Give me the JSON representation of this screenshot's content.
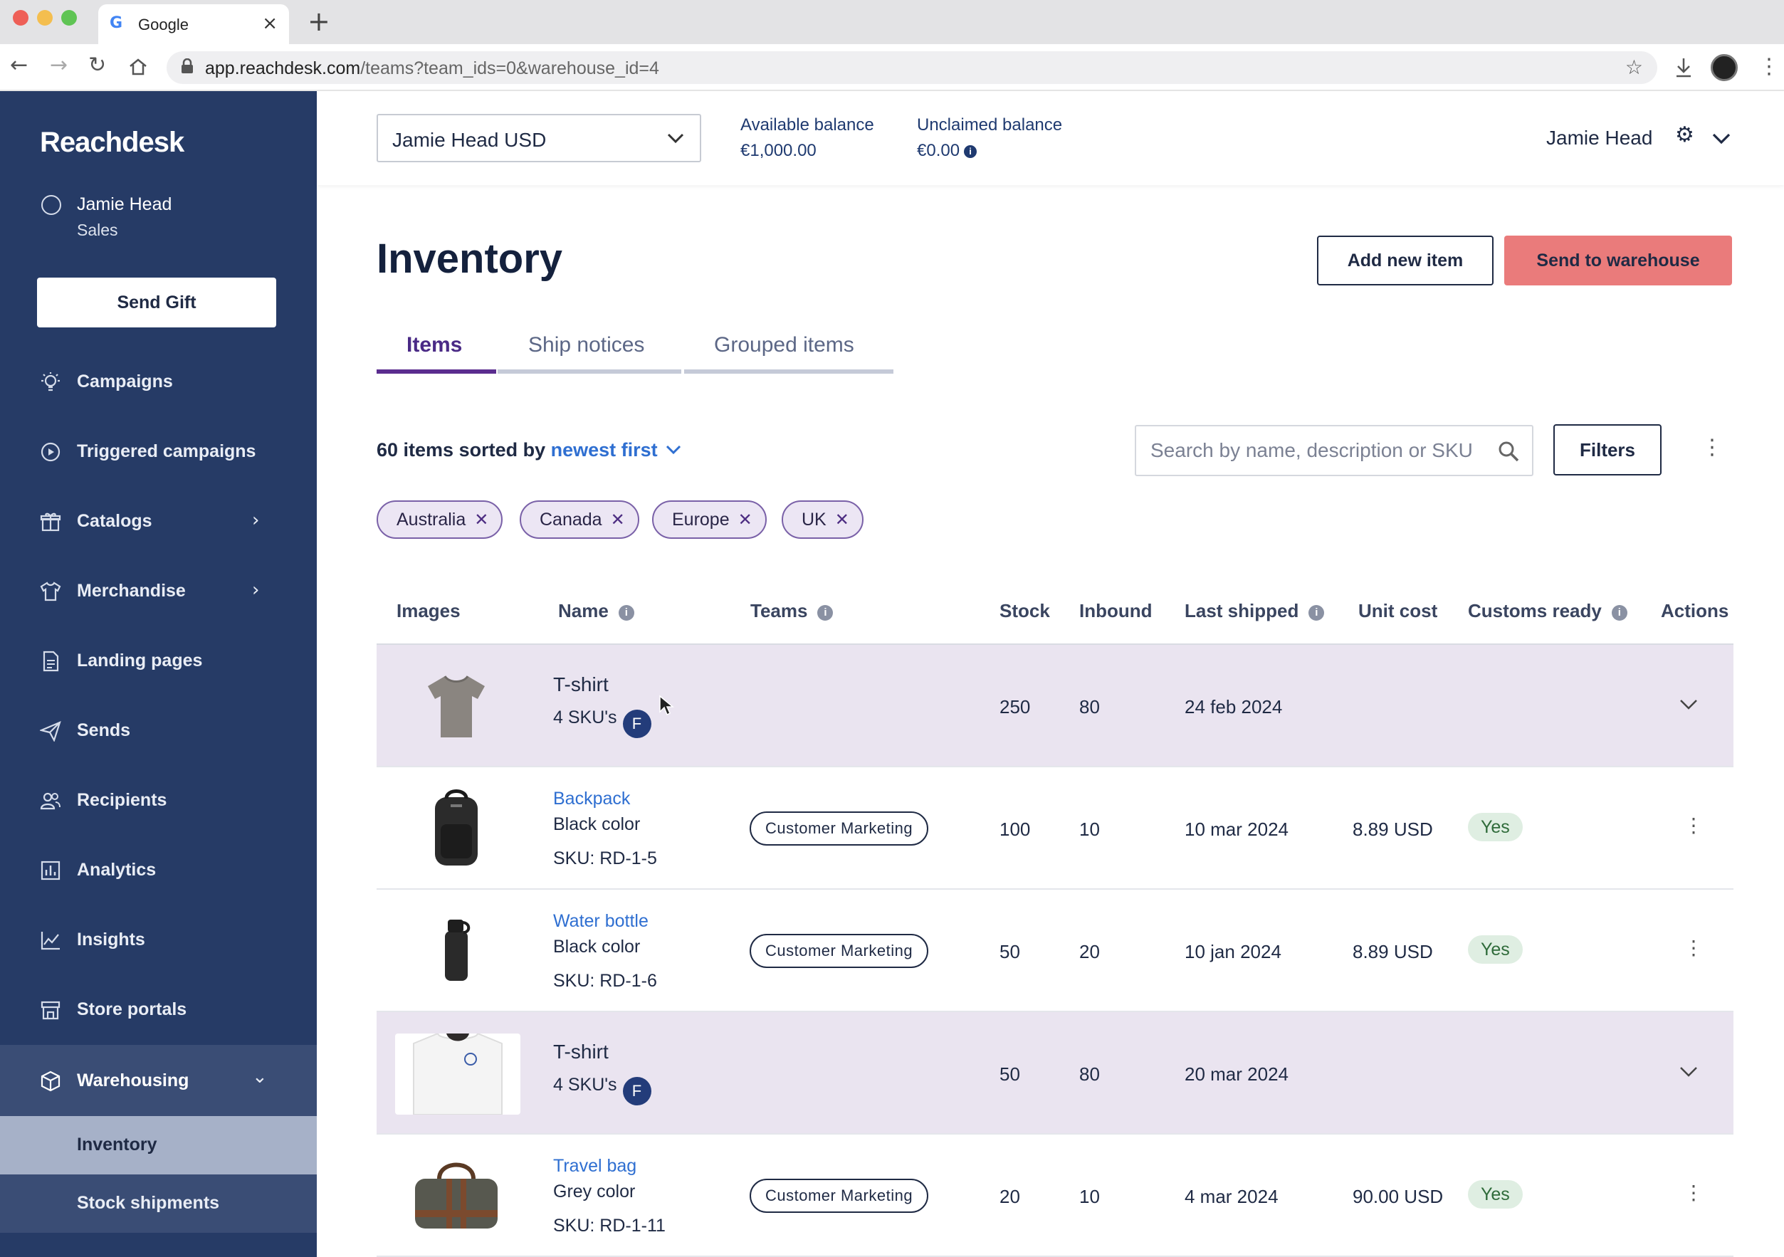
{
  "browser": {
    "tab_title": "Google",
    "tab_favicon": "G",
    "url_domain": "app.reachdesk.com",
    "url_path": "/teams?team_ids=0&warehouse_id=4"
  },
  "sidebar": {
    "logo": "Reachdesk",
    "user_name": "Jamie Head",
    "user_role": "Sales",
    "send_gift": "Send Gift",
    "items": [
      {
        "label": "Campaigns",
        "icon": "lightbulb-icon"
      },
      {
        "label": "Triggered campaigns",
        "icon": "play-circle-icon"
      },
      {
        "label": "Catalogs",
        "icon": "gift-icon"
      },
      {
        "label": "Merchandise",
        "icon": "tshirt-icon"
      },
      {
        "label": "Landing pages",
        "icon": "document-icon"
      },
      {
        "label": "Sends",
        "icon": "paper-plane-icon"
      },
      {
        "label": "Recipients",
        "icon": "people-icon"
      },
      {
        "label": "Analytics",
        "icon": "bar-chart-icon"
      },
      {
        "label": "Insights",
        "icon": "line-chart-icon"
      },
      {
        "label": "Store portals",
        "icon": "store-icon"
      },
      {
        "label": "Warehousing",
        "icon": "box-icon"
      }
    ],
    "sub_items": [
      {
        "label": "Inventory"
      },
      {
        "label": "Stock shipments"
      }
    ]
  },
  "header": {
    "account": "Jamie Head USD",
    "available_label": "Available balance",
    "available_value": "€1,000.00",
    "unclaimed_label": "Unclaimed balance",
    "unclaimed_value": "€0.00",
    "user": "Jamie Head"
  },
  "page": {
    "title": "Inventory",
    "add_button": "Add new item",
    "send_button": "Send to warehouse",
    "tabs": [
      {
        "label": "Items",
        "active": true
      },
      {
        "label": "Ship notices",
        "active": false
      },
      {
        "label": "Grouped items",
        "active": false
      }
    ],
    "sort_prefix": "60 items sorted by",
    "sort_value": "newest first",
    "search_placeholder": "Search by name, description or SKU",
    "filters_button": "Filters",
    "chips": [
      "Australia",
      "Canada",
      "Europe",
      "UK"
    ]
  },
  "table": {
    "headers": {
      "images": "Images",
      "name": "Name",
      "teams": "Teams",
      "stock": "Stock",
      "inbound": "Inbound",
      "last_shipped": "Last shipped",
      "unit_cost": "Unit cost",
      "customs_ready": "Customs ready",
      "actions": "Actions"
    },
    "rows": [
      {
        "name": "T-shirt",
        "skus": "4 SKU's",
        "badge": "F",
        "stock": "250",
        "inbound": "80",
        "last_shipped": "24 feb 2024"
      },
      {
        "name": "Backpack",
        "color": "Black color",
        "sku": "SKU: RD-1-5",
        "team": "Customer Marketing",
        "stock": "100",
        "inbound": "10",
        "last_shipped": "10 mar 2024",
        "unit_cost": "8.89 USD",
        "customs": "Yes"
      },
      {
        "name": "Water bottle",
        "color": "Black color",
        "sku": "SKU: RD-1-6",
        "team": "Customer Marketing",
        "stock": "50",
        "inbound": "20",
        "last_shipped": "10 jan 2024",
        "unit_cost": "8.89 USD",
        "customs": "Yes"
      },
      {
        "name": "T-shirt",
        "skus": "4 SKU's",
        "badge": "F",
        "stock": "50",
        "inbound": "80",
        "last_shipped": "20 mar 2024"
      },
      {
        "name": "Travel bag",
        "color": "Grey color",
        "sku": "SKU: RD-1-11",
        "team": "Customer Marketing",
        "stock": "20",
        "inbound": "10",
        "last_shipped": "4 mar 2024",
        "unit_cost": "90.00 USD",
        "customs": "Yes"
      }
    ]
  },
  "colors": {
    "sidebar": "#263b66",
    "accent_purple": "#5b2d8f",
    "send_button": "#ea7b7b",
    "link_blue": "#2f6fd1",
    "group_row": "#eae4f0"
  }
}
